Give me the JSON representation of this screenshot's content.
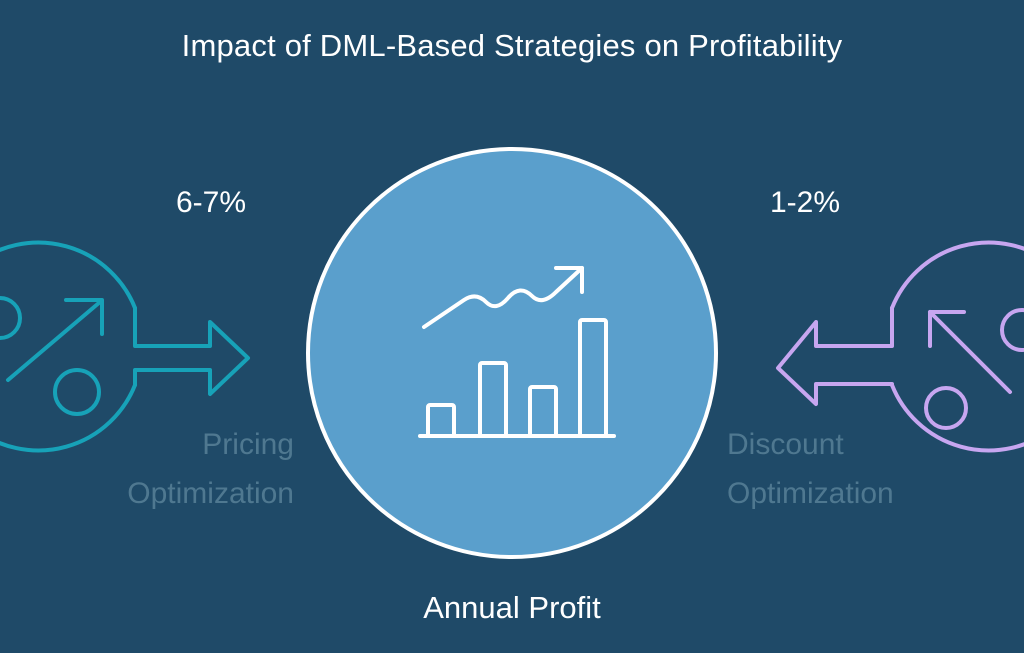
{
  "title": "Impact of DML-Based Strategies on Profitability",
  "center": {
    "label": "Annual Profit",
    "icon": "chart-growth-icon"
  },
  "left": {
    "percent": "6-7%",
    "label_line1": "Pricing",
    "label_line2": "Optimization",
    "icon": "percent-up-icon",
    "color": "#17a2b8"
  },
  "right": {
    "percent": "1-2%",
    "label_line1": "Discount",
    "label_line2": "Optimization",
    "icon": "percent-down-icon",
    "color": "#c7a6f0"
  },
  "colors": {
    "background": "#1f4a68",
    "center_fill": "#5a9fcc",
    "center_stroke": "#ffffff",
    "muted_label": "#4f7890"
  }
}
